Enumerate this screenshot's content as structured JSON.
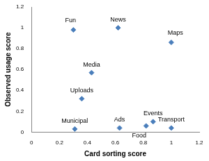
{
  "chart_data": {
    "type": "scatter",
    "x_label": "Card sorting score",
    "y_label": "Observed usage score",
    "point_labels": [
      "Fun",
      "News",
      "Maps",
      "Media",
      "Uploads",
      "Municipal",
      "Ads",
      "Food",
      "Events",
      "Transport"
    ],
    "x": [
      0.3,
      0.62,
      1.0,
      0.43,
      0.36,
      0.31,
      0.63,
      0.82,
      0.87,
      1.0
    ],
    "values": [
      0.98,
      1.0,
      0.86,
      0.57,
      0.32,
      0.03,
      0.04,
      0.06,
      0.1,
      0.04
    ],
    "color": "#4a7ebb",
    "marker": "diamond",
    "xlim": [
      0,
      1.2
    ],
    "xticks": [
      0,
      0.2,
      0.4,
      0.6,
      0.8,
      1,
      1.2
    ],
    "ylim": [
      0,
      1.2
    ],
    "yticks": [
      0,
      0.2,
      0.4,
      0.6,
      0.8,
      1,
      1.2
    ],
    "grid": false
  }
}
